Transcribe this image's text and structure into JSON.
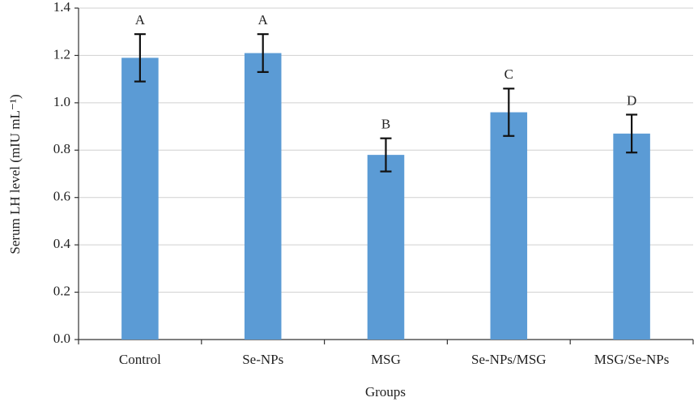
{
  "chart_data": {
    "type": "bar",
    "x_label": "Groups",
    "y_label": "Serum LH level (mIU mL⁻¹)",
    "categories": [
      "Control",
      "Se-NPs",
      "MSG",
      "Se-NPs/MSG",
      "MSG/Se-NPs"
    ],
    "values": [
      1.19,
      1.21,
      0.78,
      0.96,
      0.87
    ],
    "errors": [
      0.1,
      0.08,
      0.07,
      0.1,
      0.08
    ],
    "annotations": [
      "A",
      "A",
      "B",
      "C",
      "D"
    ],
    "color": "#5b9bd5",
    "ylim": [
      0,
      1.4
    ],
    "yticks": [
      {
        "value": 0,
        "label": "0.0"
      },
      0.2,
      0.4,
      0.6,
      0.8,
      {
        "value": 1,
        "label": "1.0"
      },
      1.2,
      1.4
    ],
    "grid": true
  }
}
